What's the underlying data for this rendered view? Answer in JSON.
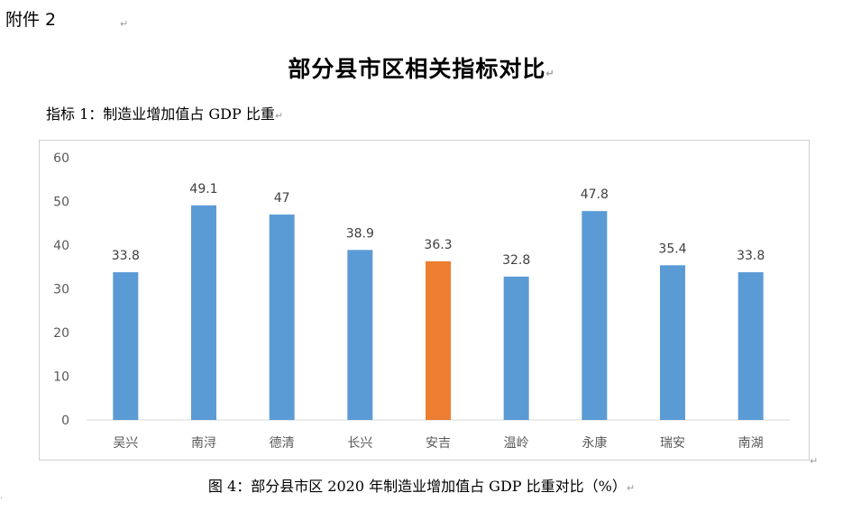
{
  "document": {
    "attachment_label": "附件 2",
    "title": "部分县市区相关指标对比",
    "indicator_label": "指标 1：制造业增加值占 GDP 比重",
    "caption": "图 4：部分县市区 2020 年制造业增加值占 GDP 比重对比（%）",
    "paragraph_mark": "↵"
  },
  "chart_data": {
    "type": "bar",
    "title": "",
    "xlabel": "",
    "ylabel": "",
    "categories": [
      "吴兴",
      "南浔",
      "德清",
      "长兴",
      "安吉",
      "温岭",
      "永康",
      "瑞安",
      "南湖"
    ],
    "values": [
      33.8,
      49.1,
      47,
      38.9,
      36.3,
      32.8,
      47.8,
      35.4,
      33.8
    ],
    "value_labels": [
      "33.8",
      "49.1",
      "47",
      "38.9",
      "36.3",
      "32.8",
      "47.8",
      "35.4",
      "33.8"
    ],
    "highlight_index": 4,
    "ylim": [
      0,
      60
    ],
    "yticks": [
      0,
      10,
      20,
      30,
      40,
      50,
      60
    ],
    "ytick_labels": [
      "0",
      "10",
      "20",
      "30",
      "40",
      "50",
      "60"
    ],
    "grid": false,
    "colors": {
      "bar": "#5B9BD5",
      "highlight": "#ED7D31",
      "axis": "#d9d9d9"
    }
  }
}
